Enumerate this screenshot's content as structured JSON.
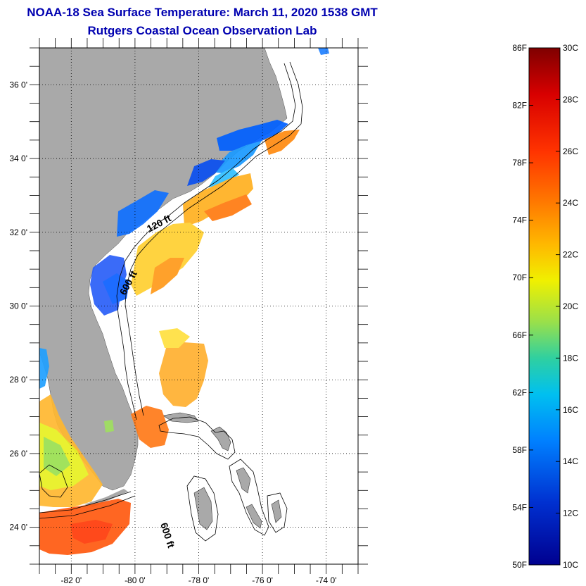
{
  "title": "NOAA-18 Sea Surface Temperature:  March 11, 2020 1538 GMT",
  "subtitle": "Rutgers Coastal Ocean Observation Lab",
  "colors": {
    "title": "#0000b0",
    "land": "#a9a9a9",
    "no_data": "#ffffff"
  },
  "map": {
    "lon_range": [
      -83,
      -73
    ],
    "lat_range": [
      23,
      37
    ],
    "lat_ticks": [
      {
        "value": 36,
        "label": "36 0'"
      },
      {
        "value": 34,
        "label": "34 0'"
      },
      {
        "value": 32,
        "label": "32 0'"
      },
      {
        "value": 30,
        "label": "30 0'"
      },
      {
        "value": 28,
        "label": "28 0'"
      },
      {
        "value": 26,
        "label": "26 0'"
      },
      {
        "value": 24,
        "label": "24 0'"
      }
    ],
    "lon_ticks": [
      {
        "value": -82,
        "label": "-82 0'"
      },
      {
        "value": -80,
        "label": "-80 0'"
      },
      {
        "value": -78,
        "label": "-78 0'"
      },
      {
        "value": -76,
        "label": "-76 0'"
      },
      {
        "value": -74,
        "label": "-74 0'"
      }
    ],
    "depth_labels": [
      {
        "text": "120 ft"
      },
      {
        "text": "600 ft"
      },
      {
        "text": "600 ft"
      }
    ]
  },
  "colorbar": {
    "f_labels": [
      "86F",
      "82F",
      "78F",
      "74F",
      "70F",
      "66F",
      "62F",
      "58F",
      "54F",
      "50F"
    ],
    "c_labels": [
      "30C",
      "28C",
      "26C",
      "24C",
      "22C",
      "20C",
      "18C",
      "16C",
      "14C",
      "12C",
      "10C"
    ],
    "colors_top_to_bottom": [
      "#7f0000",
      "#d80000",
      "#ff3300",
      "#ff7a00",
      "#ffb800",
      "#f0f000",
      "#9ae04a",
      "#2fd0a0",
      "#00c0f0",
      "#0080ff",
      "#0030d0",
      "#00008f"
    ]
  }
}
